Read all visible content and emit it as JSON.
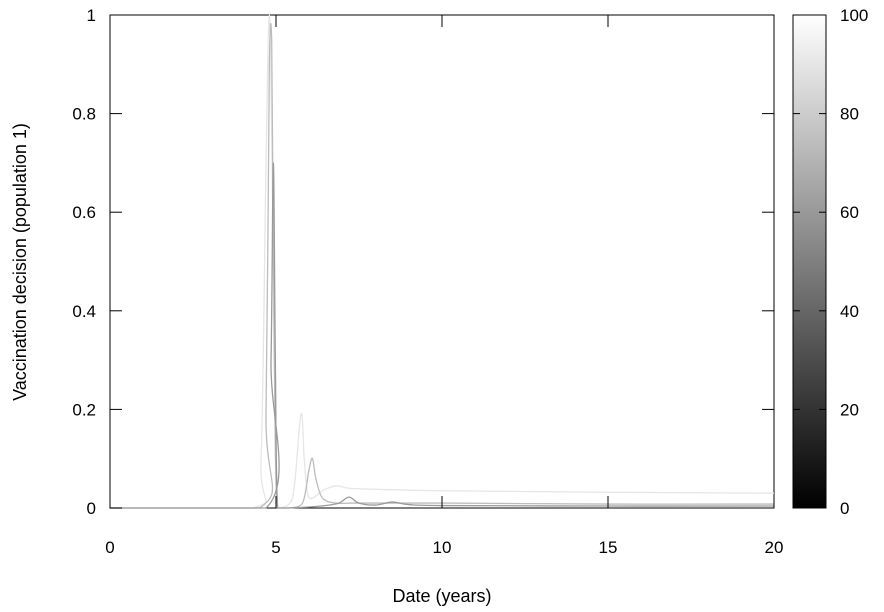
{
  "chart_data": {
    "type": "line",
    "title": "",
    "xlabel": "Date (years)",
    "ylabel": "Vaccination decision (population 1)",
    "xlim": [
      0,
      20
    ],
    "ylim": [
      0,
      1
    ],
    "xticks": [
      "0",
      "5",
      "10",
      "15",
      "20"
    ],
    "yticks": [
      "0",
      "0.2",
      "0.4",
      "0.6",
      "0.8",
      "1"
    ],
    "grid": false,
    "colorbar": {
      "range": [
        0,
        100
      ],
      "ticks": [
        "0",
        "20",
        "40",
        "60",
        "80",
        "100"
      ],
      "colormap": "gray"
    },
    "series": [
      {
        "color_value": 100,
        "color": "#e6e6e6",
        "x": [
          0,
          4.3,
          4.55,
          4.7,
          4.8,
          4.9,
          5.0,
          5.1,
          5.5,
          5.75,
          5.85,
          5.95,
          6.1,
          6.4,
          6.8,
          7.2,
          8.0,
          10,
          15,
          20
        ],
        "y": [
          0,
          0,
          0.1,
          0.7,
          1.0,
          0.6,
          0.01,
          0,
          0.02,
          0.19,
          0.1,
          0.03,
          0.02,
          0.035,
          0.045,
          0.04,
          0.038,
          0.035,
          0.032,
          0.03
        ]
      },
      {
        "color_value": 85,
        "color": "#bcbcbc",
        "x": [
          0,
          4.5,
          4.7,
          4.8,
          4.87,
          4.95,
          5.05,
          5.4,
          5.8,
          6.0,
          6.1,
          6.2,
          6.4,
          6.8,
          7.3,
          8.0,
          10,
          15,
          20
        ],
        "y": [
          0,
          0,
          0.2,
          0.9,
          0.95,
          0.3,
          0,
          0,
          0.01,
          0.08,
          0.1,
          0.06,
          0.02,
          0.01,
          0.01,
          0.01,
          0.01,
          0.008,
          0.008
        ]
      },
      {
        "color_value": 70,
        "color": "#9a9a9a",
        "x": [
          0,
          4.7,
          4.85,
          4.92,
          4.98,
          5.05,
          5.3,
          6.0,
          6.5,
          6.9,
          7.2,
          7.5,
          8.0,
          8.5,
          9.0,
          10,
          15,
          20
        ],
        "y": [
          0,
          0,
          0.3,
          0.7,
          0.3,
          0,
          0,
          0.002,
          0.005,
          0.01,
          0.022,
          0.01,
          0.006,
          0.012,
          0.007,
          0.005,
          0.004,
          0.004
        ]
      }
    ]
  }
}
